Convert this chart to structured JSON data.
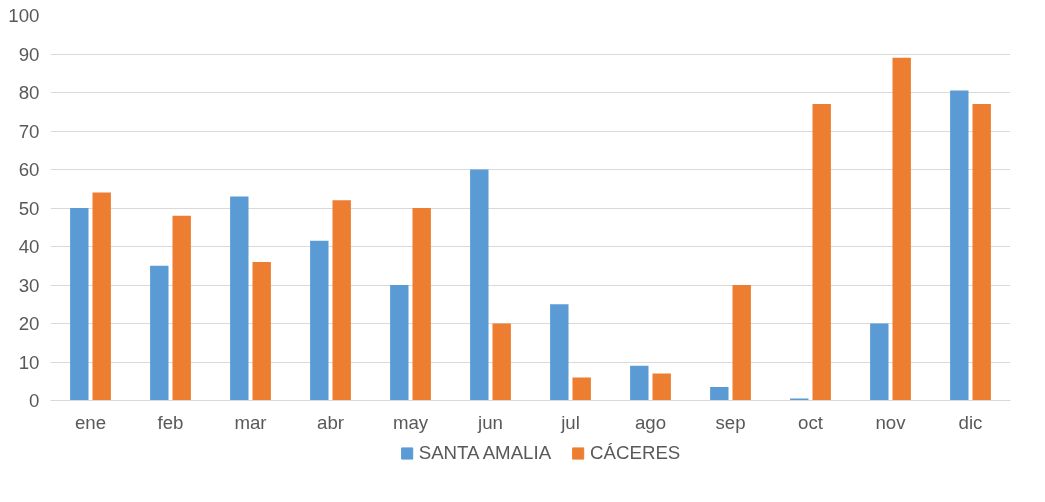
{
  "chart_data": {
    "type": "bar",
    "categories": [
      "ene",
      "feb",
      "mar",
      "abr",
      "may",
      "jun",
      "jul",
      "ago",
      "sep",
      "oct",
      "nov",
      "dic"
    ],
    "series": [
      {
        "name": "SANTA AMALIA",
        "color": "#5b9bd5",
        "values": [
          50,
          35,
          53,
          41.5,
          30,
          60,
          25,
          9,
          3.5,
          0.5,
          20,
          80.5
        ]
      },
      {
        "name": "CÁCERES",
        "color": "#ed7d31",
        "values": [
          54,
          48,
          36,
          52,
          50,
          20,
          6,
          7,
          30,
          77,
          89,
          77
        ]
      }
    ],
    "ylim": [
      0,
      100
    ],
    "yticks": [
      0,
      10,
      20,
      30,
      40,
      50,
      60,
      70,
      80,
      90,
      100
    ],
    "grid": "y",
    "legend": "bottom"
  }
}
